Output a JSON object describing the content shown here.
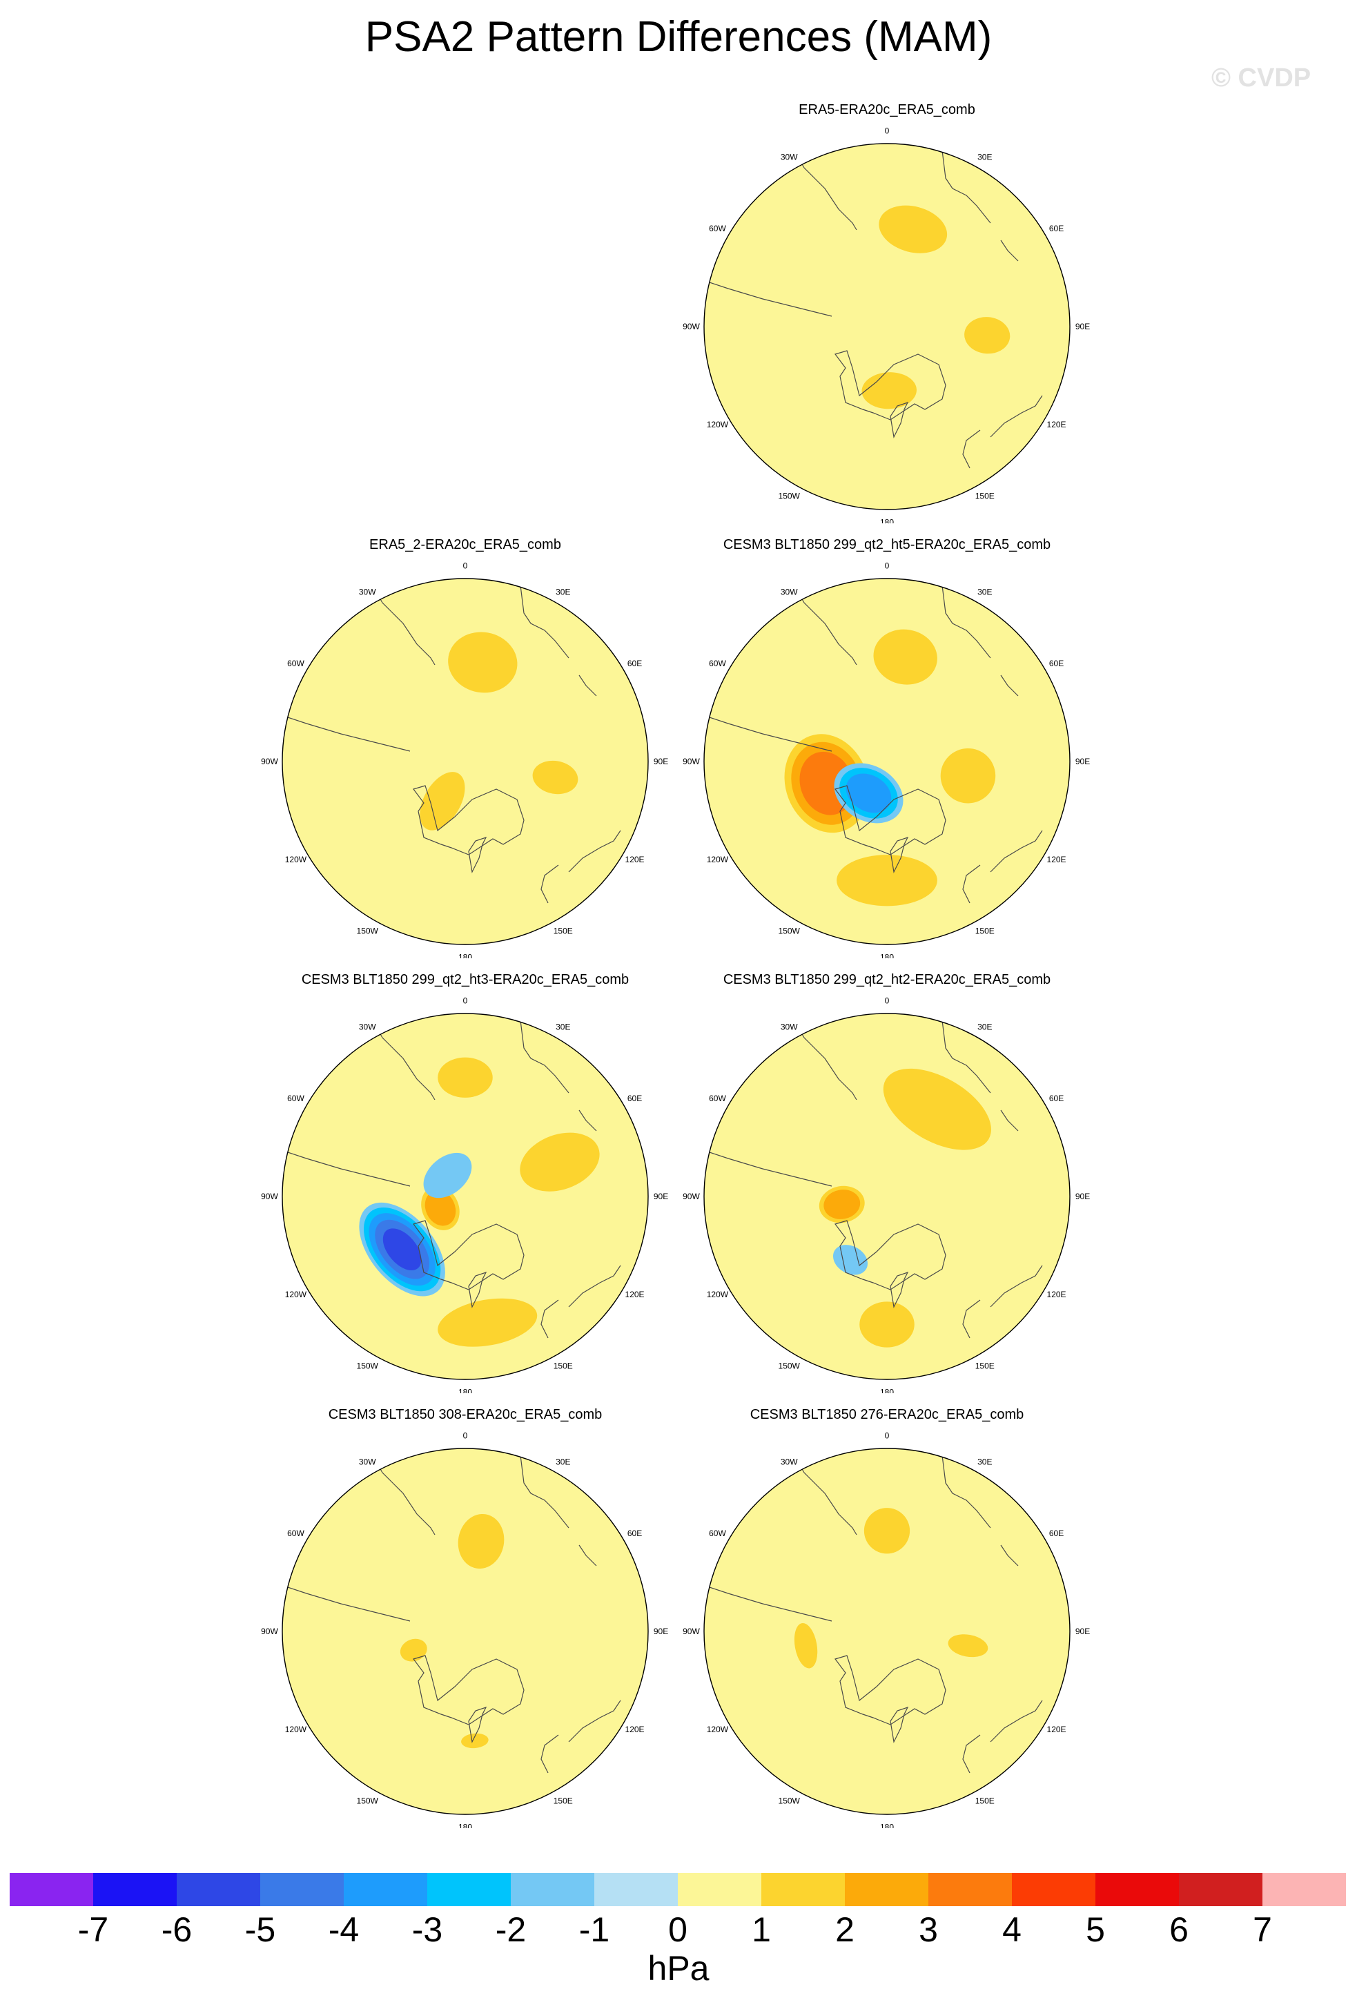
{
  "title": "PSA2 Pattern Differences (MAM)",
  "watermark": "© CVDP",
  "units": "hPa",
  "longitude_labels": [
    "0",
    "30E",
    "60E",
    "90E",
    "120E",
    "150E",
    "180",
    "150W",
    "120W",
    "90W",
    "60W",
    "30W"
  ],
  "colorbar": {
    "levels": [
      "-7",
      "-6",
      "-5",
      "-4",
      "-3",
      "-2",
      "-1",
      "0",
      "1",
      "2",
      "3",
      "4",
      "5",
      "6",
      "7"
    ],
    "colors": [
      "#8a24f0",
      "#1b13f5",
      "#2e47e6",
      "#3a7ae8",
      "#1e9cfc",
      "#00c4fc",
      "#74c8f4",
      "#b5e0f4",
      "#fcf697",
      "#fcd42f",
      "#fcaa0a",
      "#fc7b0d",
      "#fc3c04",
      "#ea0a0a",
      "#d11f1f",
      "#fcb4b4"
    ]
  },
  "chart_data": [
    {
      "type": "heatmap",
      "projection": "south-polar-stereographic",
      "title": "ERA5-ERA20c_ERA5_comb",
      "variable": "PSA2 pattern difference",
      "units": "hPa",
      "features": [
        {
          "lon": 15,
          "radius": 0.55,
          "value": 1.4,
          "width": 0.38,
          "height": 0.25
        },
        {
          "lon": 95,
          "radius": 0.55,
          "value": 1.2,
          "width": 0.2,
          "height": 0.25
        },
        {
          "lon": 178,
          "radius": 0.35,
          "value": 1.3,
          "width": 0.3,
          "height": 0.2
        },
        {
          "lon": 160,
          "radius": 0.38,
          "value": -0.8,
          "width": 0.2,
          "height": 0.3
        },
        {
          "lon": -45,
          "radius": 0.58,
          "value": -0.8,
          "width": 0.15,
          "height": 0.25
        },
        {
          "lon": -100,
          "radius": 0.65,
          "value": -0.9,
          "width": 0.35,
          "height": 0.35
        }
      ]
    },
    {
      "type": "heatmap",
      "projection": "south-polar-stereographic",
      "title": "ERA5_2-ERA20c_ERA5_comb",
      "variable": "PSA2 pattern difference",
      "units": "hPa",
      "features": [
        {
          "lon": 10,
          "radius": 0.55,
          "value": 1.3,
          "width": 0.38,
          "height": 0.33
        },
        {
          "lon": 100,
          "radius": 0.5,
          "value": 1.2,
          "width": 0.18,
          "height": 0.25
        },
        {
          "lon": -150,
          "radius": 0.25,
          "value": 1.2,
          "width": 0.2,
          "height": 0.35
        },
        {
          "lon": 150,
          "radius": 0.2,
          "value": -0.7,
          "width": 0.15,
          "height": 0.12
        },
        {
          "lon": -75,
          "radius": 0.8,
          "value": -0.9,
          "width": 0.3,
          "height": 0.4
        },
        {
          "lon": -120,
          "radius": 0.75,
          "value": -0.9,
          "width": 0.15,
          "height": 0.35
        }
      ]
    },
    {
      "type": "heatmap",
      "projection": "south-polar-stereographic",
      "title": "CESM3 BLT1850 299_qt2_ht5-ERA20c_ERA5_comb",
      "variable": "PSA2 pattern difference",
      "units": "hPa",
      "features": [
        {
          "lon": 10,
          "radius": 0.58,
          "value": 1.3,
          "width": 0.35,
          "height": 0.3
        },
        {
          "lon": 100,
          "radius": 0.45,
          "value": 1.3,
          "width": 0.3,
          "height": 0.3
        },
        {
          "lon": -110,
          "radius": 0.35,
          "value": 3.4,
          "width": 0.55,
          "height": 0.45
        },
        {
          "lon": -150,
          "radius": 0.2,
          "value": -3.5,
          "width": 0.4,
          "height": 0.3
        },
        {
          "lon": 180,
          "radius": 0.65,
          "value": 1.5,
          "width": 0.55,
          "height": 0.28
        },
        {
          "lon": -30,
          "radius": 0.7,
          "value": -0.8,
          "width": 0.4,
          "height": 0.25
        },
        {
          "lon": 70,
          "radius": 0.85,
          "value": -0.8,
          "width": 0.3,
          "height": 0.4
        }
      ]
    },
    {
      "type": "heatmap",
      "projection": "south-polar-stereographic",
      "title": "CESM3 BLT1850 299_qt2_ht3-ERA20c_ERA5_comb",
      "variable": "PSA2 pattern difference",
      "units": "hPa",
      "features": [
        {
          "lon": 0,
          "radius": 0.65,
          "value": 1.3,
          "width": 0.3,
          "height": 0.22
        },
        {
          "lon": 70,
          "radius": 0.55,
          "value": 1.4,
          "width": 0.3,
          "height": 0.45
        },
        {
          "lon": -115,
          "radius": 0.15,
          "value": 2.8,
          "width": 0.25,
          "height": 0.2
        },
        {
          "lon": -130,
          "radius": 0.45,
          "value": -5.0,
          "width": 0.6,
          "height": 0.35
        },
        {
          "lon": 170,
          "radius": 0.7,
          "value": 1.5,
          "width": 0.55,
          "height": 0.25
        },
        {
          "lon": -40,
          "radius": 0.15,
          "value": -1.4,
          "width": 0.3,
          "height": 0.2
        }
      ]
    },
    {
      "type": "heatmap",
      "projection": "south-polar-stereographic",
      "title": "CESM3 BLT1850 299_qt2_ht2-ERA20c_ERA5_comb",
      "variable": "PSA2 pattern difference",
      "units": "hPa",
      "features": [
        {
          "lon": 30,
          "radius": 0.55,
          "value": 1.4,
          "width": 0.65,
          "height": 0.35
        },
        {
          "lon": -100,
          "radius": 0.25,
          "value": 2.8,
          "width": 0.2,
          "height": 0.25
        },
        {
          "lon": -150,
          "radius": 0.4,
          "value": -1.4,
          "width": 0.2,
          "height": 0.15
        },
        {
          "lon": 180,
          "radius": 0.7,
          "value": 1.3,
          "width": 0.3,
          "height": 0.25
        },
        {
          "lon": -110,
          "radius": 0.35,
          "value": -0.9,
          "width": 0.55,
          "height": 0.55
        },
        {
          "lon": 120,
          "radius": 0.85,
          "value": -0.8,
          "width": 0.3,
          "height": 0.4
        }
      ]
    },
    {
      "type": "heatmap",
      "projection": "south-polar-stereographic",
      "title": "CESM3 BLT1850 308-ERA20c_ERA5_comb",
      "variable": "PSA2 pattern difference",
      "units": "hPa",
      "features": [
        {
          "lon": 10,
          "radius": 0.5,
          "value": 1.3,
          "width": 0.25,
          "height": 0.3
        },
        {
          "lon": -110,
          "radius": 0.3,
          "value": 1.2,
          "width": 0.12,
          "height": 0.15
        },
        {
          "lon": -40,
          "radius": 0.5,
          "value": -0.8,
          "width": 0.35,
          "height": 0.25
        },
        {
          "lon": 140,
          "radius": 0.35,
          "value": -0.8,
          "width": 0.3,
          "height": 0.35
        },
        {
          "lon": 175,
          "radius": 0.6,
          "value": 1.1,
          "width": 0.15,
          "height": 0.08
        }
      ]
    },
    {
      "type": "heatmap",
      "projection": "south-polar-stereographic",
      "title": "CESM3 BLT1850 276-ERA20c_ERA5_comb",
      "variable": "PSA2 pattern difference",
      "units": "hPa",
      "features": [
        {
          "lon": 0,
          "radius": 0.55,
          "value": 1.3,
          "width": 0.25,
          "height": 0.25
        },
        {
          "lon": 100,
          "radius": 0.45,
          "value": 1.2,
          "width": 0.12,
          "height": 0.22
        },
        {
          "lon": -100,
          "radius": 0.45,
          "value": 1.2,
          "width": 0.25,
          "height": 0.12
        },
        {
          "lon": -40,
          "radius": 0.55,
          "value": -0.8,
          "width": 0.35,
          "height": 0.3
        },
        {
          "lon": 70,
          "radius": 0.9,
          "value": -0.8,
          "width": 0.2,
          "height": 0.4
        }
      ]
    }
  ]
}
